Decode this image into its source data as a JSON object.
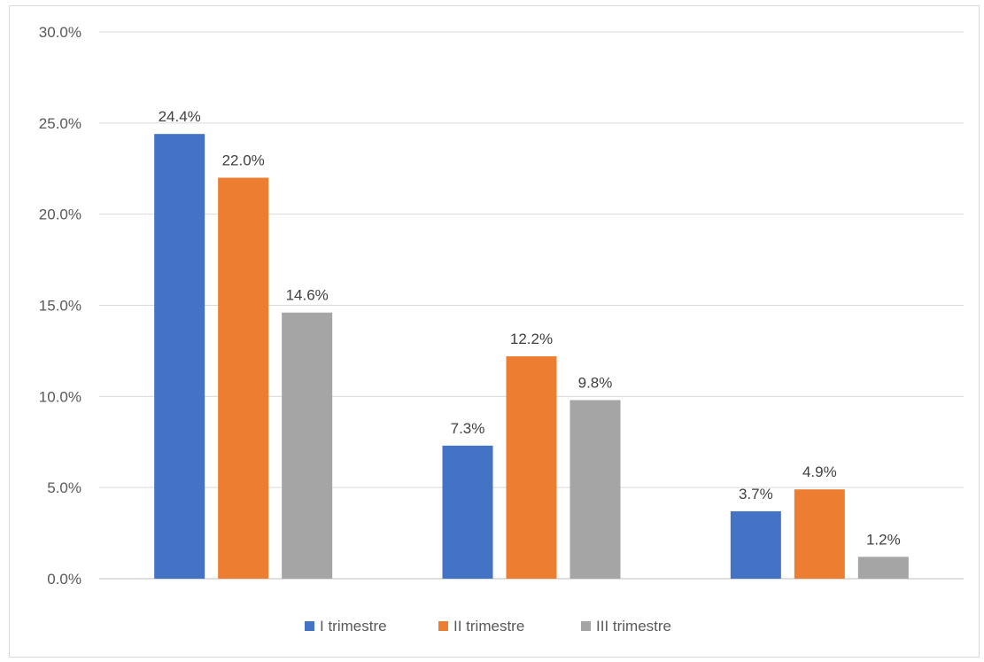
{
  "chart_data": {
    "type": "bar",
    "title": "",
    "xlabel": "",
    "ylabel": "",
    "categories": [
      "",
      "",
      ""
    ],
    "series": [
      {
        "name": "I trimestre",
        "color": "#4472c4",
        "values": [
          24.4,
          7.3,
          3.7
        ],
        "labels": [
          "24.4%",
          "7.3%",
          "3.7%"
        ]
      },
      {
        "name": "II trimestre",
        "color": "#ed7d31",
        "values": [
          22.0,
          12.2,
          4.9
        ],
        "labels": [
          "22.0%",
          "12.2%",
          "4.9%"
        ]
      },
      {
        "name": "III trimestre",
        "color": "#a5a5a5",
        "values": [
          14.6,
          9.8,
          1.2
        ],
        "labels": [
          "14.6%",
          "9.8%",
          "1.2%"
        ]
      }
    ],
    "ylim": [
      0,
      30
    ],
    "yticks": [
      "0.0%",
      "5.0%",
      "10.0%",
      "15.0%",
      "20.0%",
      "25.0%",
      "30.0%"
    ],
    "grid": true,
    "legend_position": "bottom"
  }
}
